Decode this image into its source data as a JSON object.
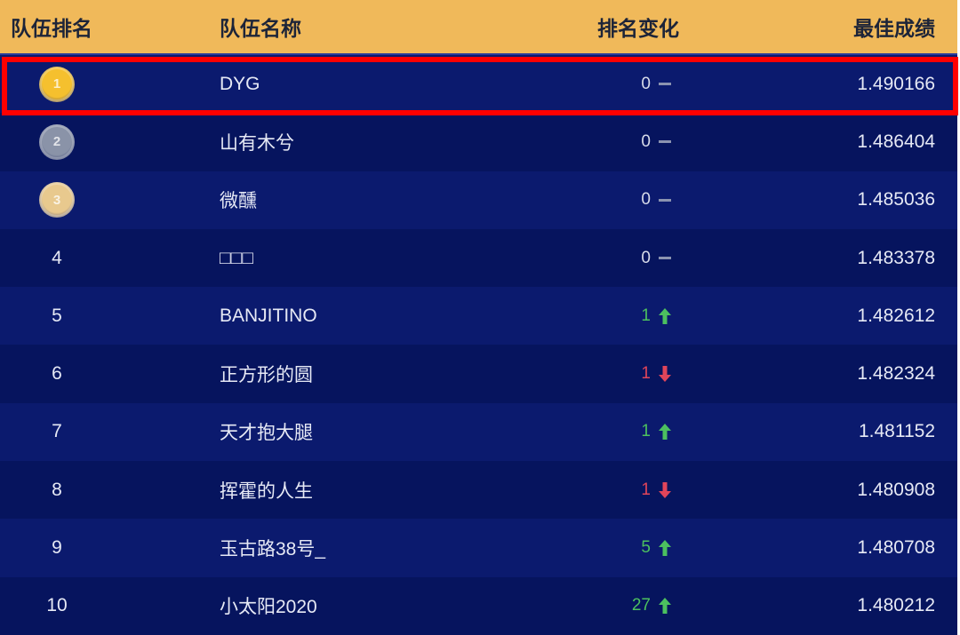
{
  "header": {
    "rank": "队伍排名",
    "name": "队伍名称",
    "change": "排名变化",
    "score": "最佳成绩"
  },
  "colors": {
    "header_bg": "#f0b95a",
    "up": "#4cc05f",
    "down": "#e0455a",
    "neutral": "#8b93b0",
    "gold": "#f5c02e",
    "silver": "#8a93a8",
    "bronze": "#e8c98e",
    "highlight": "#ff0000"
  },
  "rows": [
    {
      "rank": "1",
      "medal": "gold",
      "name": "DYG",
      "change": "0",
      "dir": "none",
      "score": "1.490166"
    },
    {
      "rank": "2",
      "medal": "silver",
      "name": "山有木兮",
      "change": "0",
      "dir": "none",
      "score": "1.486404"
    },
    {
      "rank": "3",
      "medal": "bronze",
      "name": "微醺",
      "change": "0",
      "dir": "none",
      "score": "1.485036"
    },
    {
      "rank": "4",
      "name": "□□□",
      "change": "0",
      "dir": "none",
      "score": "1.483378"
    },
    {
      "rank": "5",
      "name": "BANJITINO",
      "change": "1",
      "dir": "up",
      "score": "1.482612"
    },
    {
      "rank": "6",
      "name": "正方形的圆",
      "change": "1",
      "dir": "down",
      "score": "1.482324"
    },
    {
      "rank": "7",
      "name": "天才抱大腿",
      "change": "1",
      "dir": "up",
      "score": "1.481152"
    },
    {
      "rank": "8",
      "name": "挥霍的人生",
      "change": "1",
      "dir": "down",
      "score": "1.480908"
    },
    {
      "rank": "9",
      "name": "玉古路38号_",
      "change": "5",
      "dir": "up",
      "score": "1.480708"
    },
    {
      "rank": "10",
      "name": "小太阳2020",
      "change": "27",
      "dir": "up",
      "score": "1.480212"
    }
  ]
}
